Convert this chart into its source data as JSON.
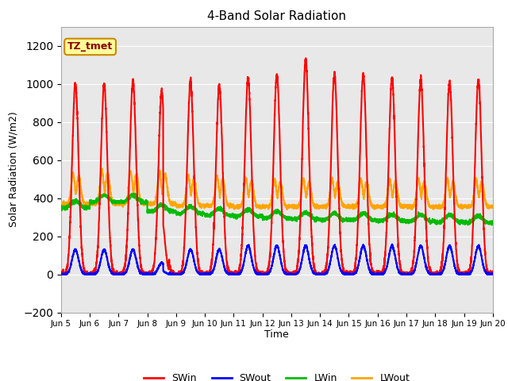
{
  "title": "4-Band Solar Radiation",
  "ylabel": "Solar Radiation (W/m2)",
  "xlabel": "Time",
  "annotation": "TZ_tmet",
  "ylim": [
    -200,
    1300
  ],
  "yticks": [
    -200,
    0,
    200,
    400,
    600,
    800,
    1000,
    1200
  ],
  "background_color": "#ffffff",
  "plot_bg_color": "#e8e8e8",
  "grid_color": "#ffffff",
  "colors": {
    "SWin": "#ff0000",
    "SWout": "#0000ff",
    "LWin": "#00bb00",
    "LWout": "#ffa500"
  },
  "line_width": 1.5,
  "n_days": 15,
  "start_day": 5,
  "points_per_day": 288,
  "SWin_peaks": [
    1000,
    1000,
    1010,
    960,
    1010,
    990,
    1030,
    1050,
    1130,
    1050,
    1050,
    1030,
    1020,
    1010,
    1020
  ],
  "SWout_peaks": [
    130,
    130,
    130,
    60,
    130,
    130,
    150,
    150,
    150,
    150,
    150,
    150,
    150,
    150,
    150
  ],
  "LWin_base": [
    350,
    380,
    380,
    330,
    320,
    310,
    305,
    295,
    290,
    285,
    285,
    280,
    278,
    275,
    272
  ],
  "LWout_base": [
    370,
    370,
    370,
    370,
    360,
    360,
    355,
    355,
    355,
    355,
    355,
    355,
    355,
    355,
    355
  ],
  "LWout_amp": [
    160,
    180,
    170,
    170,
    160,
    155,
    150,
    145,
    145,
    145,
    145,
    145,
    145,
    145,
    145
  ]
}
